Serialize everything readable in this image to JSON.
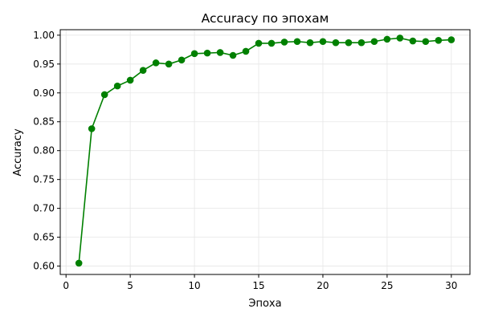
{
  "chart_data": {
    "type": "line",
    "title": "Accuracy по эпохам",
    "xlabel": "Эпоха",
    "ylabel": "Accuracy",
    "xlim": [
      -0.45,
      31.45
    ],
    "ylim": [
      0.5855,
      1.0095
    ],
    "x_ticks": [
      0,
      5,
      10,
      15,
      20,
      25,
      30
    ],
    "y_ticks": [
      0.6,
      0.65,
      0.7,
      0.75,
      0.8,
      0.85,
      0.9,
      0.95,
      1.0
    ],
    "grid": true,
    "colors": {
      "line": "#008000",
      "marker": "#008000",
      "grid": "#e6e6e6",
      "axes": "#000000"
    },
    "series": [
      {
        "x": [
          1,
          2,
          3,
          4,
          5,
          6,
          7,
          8,
          9,
          10,
          11,
          12,
          13,
          14,
          15,
          16,
          17,
          18,
          19,
          20,
          21,
          22,
          23,
          24,
          25,
          26,
          27,
          28,
          29,
          30
        ],
        "values": [
          0.605,
          0.838,
          0.897,
          0.912,
          0.922,
          0.939,
          0.952,
          0.95,
          0.957,
          0.968,
          0.969,
          0.97,
          0.965,
          0.972,
          0.986,
          0.986,
          0.988,
          0.989,
          0.987,
          0.989,
          0.987,
          0.987,
          0.987,
          0.989,
          0.993,
          0.995,
          0.99,
          0.989,
          0.991,
          0.992
        ],
        "marker": "circle"
      }
    ]
  }
}
